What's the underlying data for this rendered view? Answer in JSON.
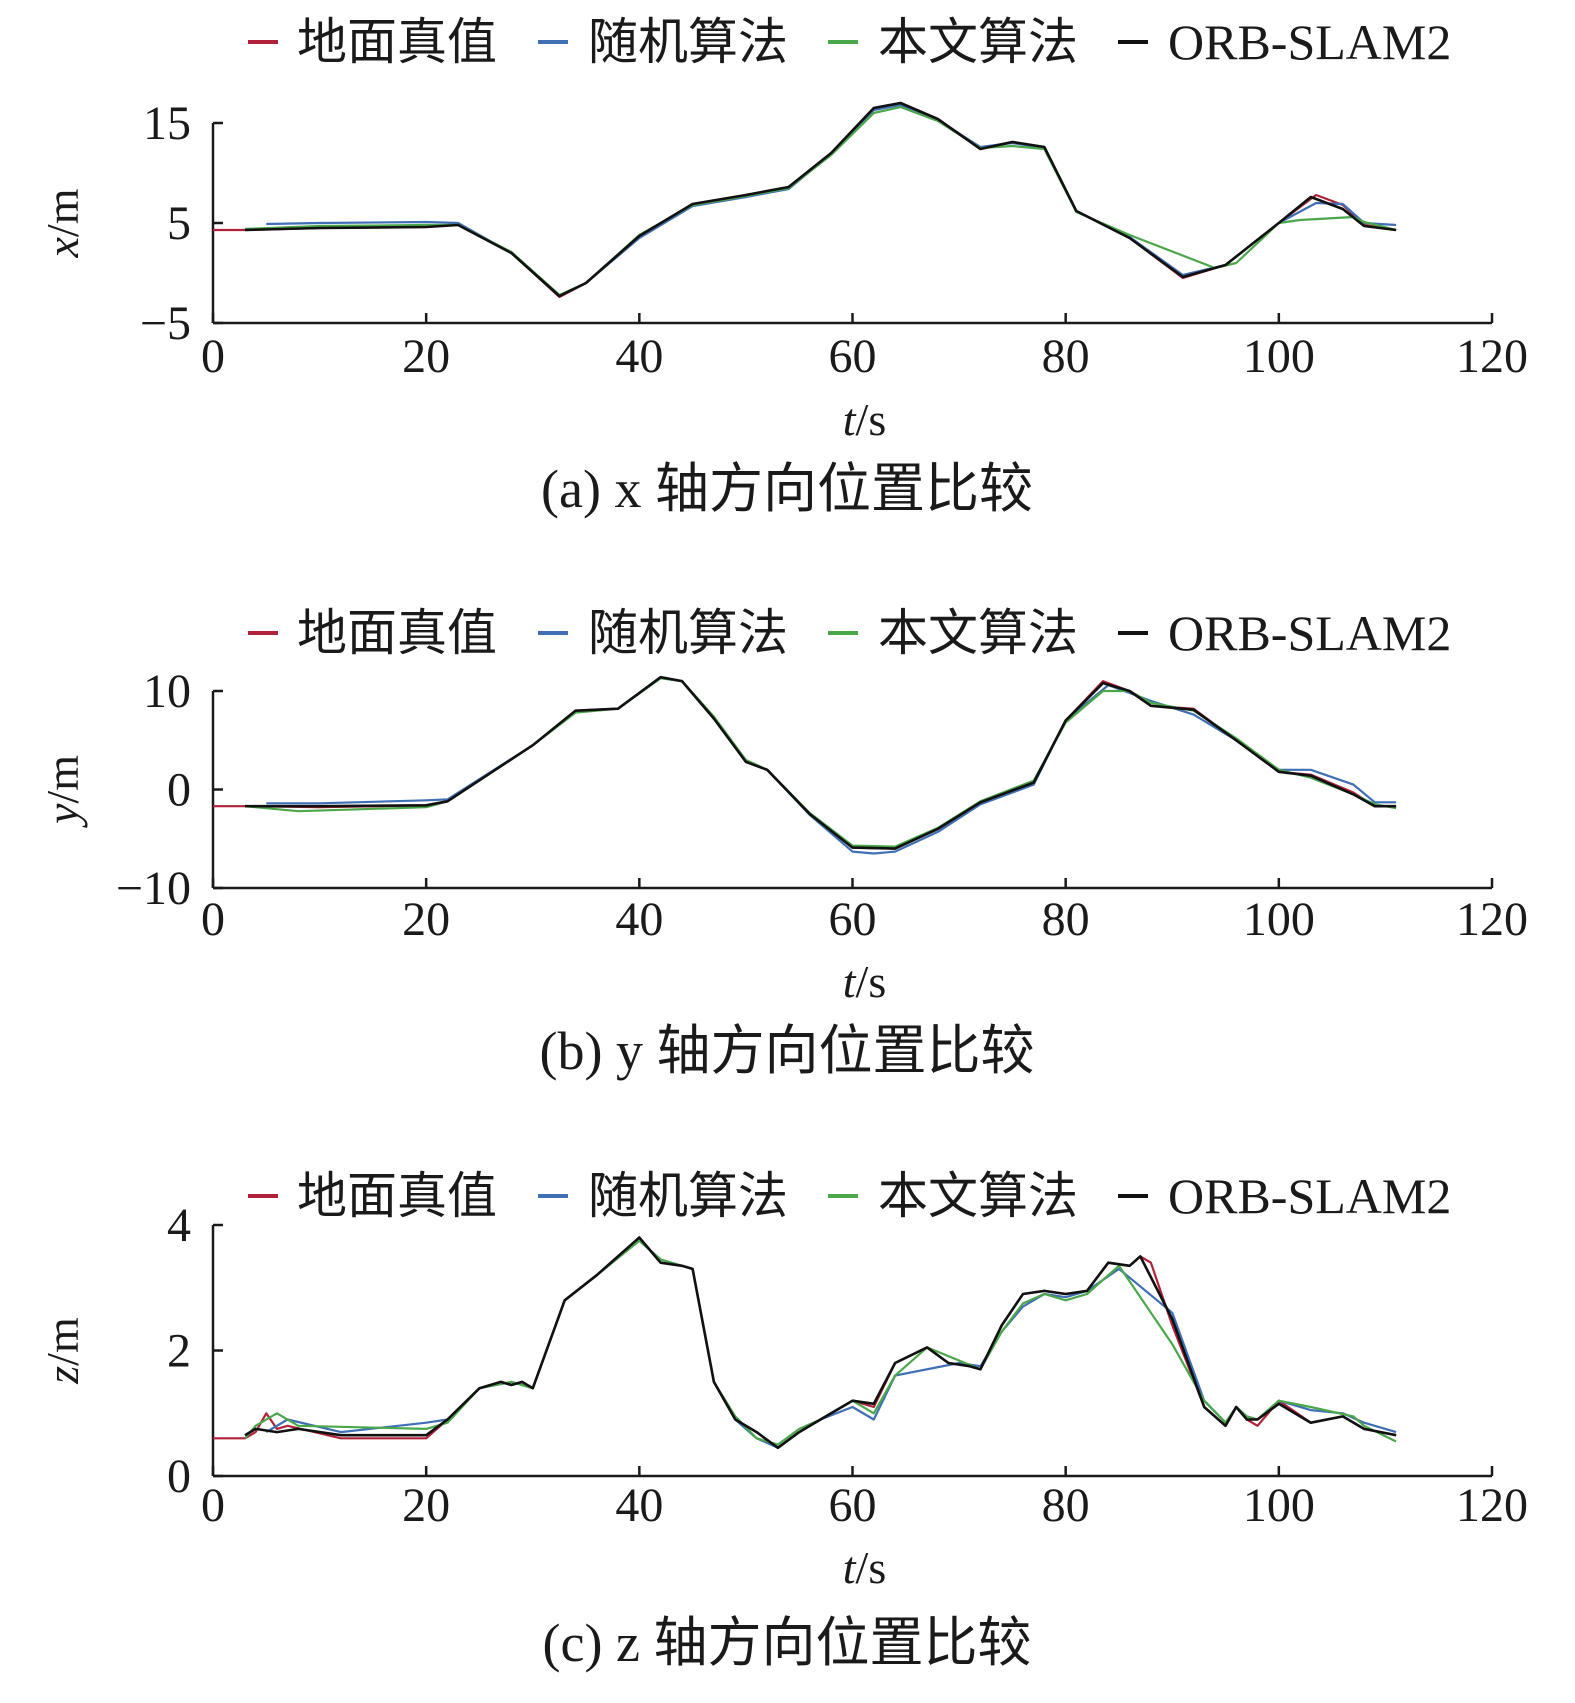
{
  "legend": {
    "items": [
      {
        "label": "地面真值",
        "color": "#b0223a"
      },
      {
        "label": "随机算法",
        "color": "#3f6fb5"
      },
      {
        "label": "本文算法",
        "color": "#4aa84a"
      },
      {
        "label": "ORB-SLAM2",
        "color": "#111111"
      }
    ]
  },
  "chart_data": [
    {
      "type": "line",
      "caption": "(a) x 轴方向位置比较",
      "xlabel": "t/s",
      "ylabel": "x/m",
      "xlim": [
        0,
        120
      ],
      "ylim": [
        -5,
        15
      ],
      "xticks": [
        0,
        20,
        40,
        60,
        80,
        100,
        120
      ],
      "yticks": [
        -5,
        5,
        15
      ],
      "ytick_labels": [
        "−5",
        "5",
        "15"
      ],
      "grid": false,
      "legend_position": "top",
      "series": [
        {
          "name": "地面真值",
          "color": "#b0223a",
          "x": [
            0,
            3,
            10,
            20,
            23,
            28,
            32.5,
            35,
            40,
            45,
            50,
            54,
            58,
            62,
            64.5,
            68,
            72,
            75,
            78,
            81,
            86,
            91,
            95,
            100,
            103.5,
            106,
            108,
            111
          ],
          "y": [
            4.3,
            4.3,
            4.5,
            4.6,
            4.9,
            2.0,
            -2.4,
            -1.0,
            3.7,
            6.9,
            7.8,
            8.6,
            12.0,
            16.5,
            17.0,
            15.4,
            12.5,
            13.1,
            12.6,
            6.2,
            3.5,
            -0.5,
            0.8,
            5.0,
            7.8,
            6.8,
            4.8,
            4.3
          ]
        },
        {
          "name": "随机算法",
          "color": "#3f6fb5",
          "x": [
            5,
            10,
            20,
            23,
            28,
            32.5,
            35,
            40,
            45,
            50,
            54,
            58,
            62,
            64.5,
            68,
            72,
            75,
            78,
            81,
            86,
            91,
            95,
            100,
            103.5,
            106,
            108,
            111
          ],
          "y": [
            4.9,
            5.0,
            5.1,
            5.0,
            2.0,
            -2.3,
            -1.0,
            3.5,
            6.7,
            7.6,
            8.4,
            11.9,
            16.3,
            16.8,
            15.3,
            12.6,
            13.0,
            12.5,
            6.2,
            3.6,
            -0.2,
            0.8,
            5.0,
            7.0,
            6.9,
            5.0,
            4.8
          ]
        },
        {
          "name": "本文算法",
          "color": "#4aa84a",
          "x": [
            3,
            10,
            20,
            23,
            28,
            32.5,
            35,
            40,
            45,
            50,
            54,
            58,
            62,
            64.5,
            68,
            72,
            75,
            78,
            81,
            86,
            94,
            96,
            100,
            102,
            107,
            108,
            111
          ],
          "y": [
            4.4,
            4.7,
            4.8,
            4.8,
            2.1,
            -2.2,
            -1.0,
            3.8,
            6.8,
            7.7,
            8.5,
            11.8,
            16.0,
            16.6,
            15.2,
            12.5,
            12.7,
            12.4,
            6.1,
            3.8,
            0.5,
            1.0,
            5.0,
            5.3,
            5.6,
            5.1,
            4.3
          ]
        },
        {
          "name": "ORB-SLAM2",
          "color": "#111111",
          "x": [
            3,
            10,
            20,
            23,
            28,
            32.5,
            35,
            40,
            45,
            50,
            54,
            58,
            62,
            64.5,
            68,
            72,
            75,
            78,
            81,
            86,
            91,
            95,
            100,
            103,
            106,
            108,
            111
          ],
          "y": [
            4.3,
            4.5,
            4.6,
            4.8,
            2.0,
            -2.3,
            -1.0,
            3.7,
            6.9,
            7.8,
            8.6,
            12.0,
            16.5,
            17.0,
            15.4,
            12.4,
            13.1,
            12.6,
            6.2,
            3.5,
            -0.4,
            0.8,
            5.0,
            7.6,
            6.4,
            4.7,
            4.3
          ]
        }
      ]
    },
    {
      "type": "line",
      "caption": "(b) y 轴方向位置比较",
      "xlabel": "t/s",
      "ylabel": "y/m",
      "xlim": [
        0,
        120
      ],
      "ylim": [
        -10,
        10
      ],
      "xticks": [
        0,
        20,
        40,
        60,
        80,
        100,
        120
      ],
      "yticks": [
        -10,
        0,
        10
      ],
      "ytick_labels": [
        "−10",
        "0",
        "10"
      ],
      "grid": false,
      "legend_position": "top",
      "series": [
        {
          "name": "地面真值",
          "color": "#b0223a",
          "x": [
            0,
            3,
            10,
            20,
            22,
            30,
            34,
            38,
            42,
            44,
            47,
            50,
            52,
            56,
            60,
            64,
            68,
            72,
            77,
            80,
            83.5,
            86,
            88,
            92,
            96,
            100,
            103,
            107,
            109,
            111
          ],
          "y": [
            -1.7,
            -1.7,
            -1.8,
            -1.6,
            -1.2,
            4.5,
            8.0,
            8.2,
            11.4,
            11.0,
            7.2,
            2.8,
            2.0,
            -2.5,
            -5.9,
            -6.0,
            -4.0,
            -1.3,
            0.7,
            7.0,
            11.0,
            10.0,
            8.5,
            8.2,
            5.0,
            1.8,
            1.5,
            -0.3,
            -1.7,
            -1.7
          ]
        },
        {
          "name": "随机算法",
          "color": "#3f6fb5",
          "x": [
            5,
            10,
            20,
            22,
            30,
            34,
            38,
            42,
            44,
            47,
            50,
            52,
            56,
            60,
            62,
            64,
            68,
            72,
            77,
            80,
            84,
            88,
            92,
            96,
            100,
            103,
            107,
            109,
            111
          ],
          "y": [
            -1.4,
            -1.4,
            -1.1,
            -1.0,
            4.5,
            8.0,
            8.2,
            11.3,
            11.0,
            7.2,
            2.8,
            2.0,
            -2.6,
            -6.3,
            -6.5,
            -6.3,
            -4.3,
            -1.5,
            0.5,
            7.0,
            10.6,
            9.0,
            7.6,
            5.0,
            2.0,
            2.0,
            0.5,
            -1.3,
            -1.3
          ]
        },
        {
          "name": "本文算法",
          "color": "#4aa84a",
          "x": [
            3,
            8,
            20,
            22,
            30,
            34,
            38,
            42,
            44,
            47,
            50,
            52,
            56,
            60,
            64,
            68,
            72,
            77,
            80,
            83.5,
            86,
            88,
            92,
            96,
            100,
            103,
            107,
            109,
            111
          ],
          "y": [
            -1.7,
            -2.2,
            -1.8,
            -1.2,
            4.5,
            7.8,
            8.2,
            11.3,
            11.0,
            7.4,
            3.0,
            2.0,
            -2.4,
            -5.7,
            -5.8,
            -3.9,
            -1.2,
            0.9,
            6.8,
            10.0,
            10.0,
            8.8,
            8.0,
            5.2,
            2.0,
            1.2,
            -0.5,
            -1.5,
            -1.9
          ]
        },
        {
          "name": "ORB-SLAM2",
          "color": "#111111",
          "x": [
            3,
            10,
            20,
            22,
            30,
            34,
            38,
            42,
            44,
            47,
            50,
            52,
            56,
            60,
            64,
            68,
            72,
            77,
            80,
            83.5,
            86,
            88,
            92,
            96,
            100,
            103,
            107,
            109,
            111
          ],
          "y": [
            -1.7,
            -1.7,
            -1.6,
            -1.2,
            4.5,
            8.0,
            8.2,
            11.4,
            11.0,
            7.2,
            2.8,
            2.0,
            -2.5,
            -5.9,
            -6.0,
            -4.0,
            -1.3,
            0.7,
            7.0,
            10.8,
            10.0,
            8.5,
            8.1,
            5.0,
            1.8,
            1.4,
            -0.5,
            -1.7,
            -1.7
          ]
        }
      ]
    },
    {
      "type": "line",
      "caption": "(c) z 轴方向位置比较",
      "xlabel": "t/s",
      "ylabel": "z/m",
      "xlim": [
        0,
        120
      ],
      "ylim": [
        0,
        4
      ],
      "xticks": [
        0,
        20,
        40,
        60,
        80,
        100,
        120
      ],
      "yticks": [
        0,
        2,
        4
      ],
      "ytick_labels": [
        "0",
        "2",
        "4"
      ],
      "grid": false,
      "legend_position": "top",
      "series": [
        {
          "name": "地面真值",
          "color": "#b0223a",
          "x": [
            0,
            3,
            4,
            5,
            6,
            7,
            12,
            20,
            22,
            25,
            27,
            28,
            29,
            30,
            33,
            36,
            38,
            40,
            42,
            44,
            45,
            47,
            49,
            51,
            53,
            55,
            57,
            60,
            62,
            64,
            67,
            69,
            71,
            72,
            74,
            76,
            78,
            80,
            82,
            84,
            86,
            87,
            88,
            90,
            93,
            95,
            96,
            97,
            98,
            100,
            103,
            106,
            108,
            111
          ],
          "y": [
            0.6,
            0.6,
            0.7,
            1.0,
            0.75,
            0.8,
            0.6,
            0.6,
            0.9,
            1.4,
            1.5,
            1.45,
            1.5,
            1.4,
            2.8,
            3.2,
            3.5,
            3.8,
            3.4,
            3.35,
            3.3,
            1.5,
            0.9,
            0.7,
            0.45,
            0.7,
            0.9,
            1.2,
            1.1,
            1.8,
            2.05,
            1.8,
            1.75,
            1.7,
            2.4,
            2.9,
            2.95,
            2.9,
            2.95,
            3.4,
            3.35,
            3.5,
            3.4,
            2.4,
            1.1,
            0.8,
            1.1,
            0.9,
            0.8,
            1.2,
            0.85,
            0.95,
            0.75,
            0.65
          ]
        },
        {
          "name": "随机算法",
          "color": "#3f6fb5",
          "x": [
            5,
            7,
            12,
            20,
            22,
            25,
            28,
            30,
            33,
            36,
            40,
            42,
            45,
            47,
            49,
            51,
            53,
            55,
            57,
            60,
            62,
            64,
            70,
            72,
            74,
            76,
            78,
            80,
            82,
            85,
            90,
            93,
            95,
            96,
            97,
            98,
            100,
            103,
            106,
            108,
            111
          ],
          "y": [
            0.7,
            0.9,
            0.7,
            0.85,
            0.9,
            1.4,
            1.5,
            1.4,
            2.8,
            3.2,
            3.75,
            3.45,
            3.3,
            1.5,
            0.9,
            0.6,
            0.45,
            0.7,
            0.9,
            1.1,
            0.9,
            1.6,
            1.8,
            1.75,
            2.3,
            2.7,
            2.9,
            2.85,
            2.95,
            3.3,
            2.6,
            1.2,
            0.85,
            1.1,
            0.95,
            0.9,
            1.2,
            1.05,
            1.0,
            0.85,
            0.7
          ]
        },
        {
          "name": "本文算法",
          "color": "#4aa84a",
          "x": [
            3,
            4,
            6,
            8,
            20,
            22,
            25,
            28,
            30,
            33,
            36,
            40,
            42,
            45,
            47,
            49,
            51,
            53,
            55,
            57,
            60,
            62,
            64,
            67,
            72,
            74,
            76,
            78,
            80,
            82,
            85,
            90,
            93,
            95,
            96,
            97,
            98,
            100,
            103,
            107,
            108,
            111
          ],
          "y": [
            0.6,
            0.8,
            1.0,
            0.8,
            0.75,
            0.85,
            1.4,
            1.5,
            1.4,
            2.8,
            3.2,
            3.75,
            3.45,
            3.3,
            1.5,
            0.95,
            0.6,
            0.5,
            0.75,
            0.9,
            1.2,
            1.0,
            1.6,
            2.05,
            1.7,
            2.3,
            2.75,
            2.9,
            2.8,
            2.9,
            3.35,
            2.1,
            1.2,
            0.85,
            1.1,
            0.95,
            0.9,
            1.2,
            1.1,
            0.95,
            0.8,
            0.55
          ]
        },
        {
          "name": "ORB-SLAM2",
          "color": "#111111",
          "x": [
            3,
            4,
            6,
            8,
            12,
            20,
            22,
            25,
            27,
            28,
            29,
            30,
            33,
            36,
            38,
            40,
            42,
            44,
            45,
            47,
            49,
            51,
            53,
            55,
            57,
            60,
            62,
            64,
            67,
            69,
            71,
            72,
            74,
            76,
            78,
            80,
            82,
            84,
            86,
            87,
            90,
            93,
            95,
            96,
            97,
            98,
            100,
            103,
            106,
            108,
            111
          ],
          "y": [
            0.65,
            0.75,
            0.7,
            0.75,
            0.65,
            0.65,
            0.9,
            1.4,
            1.5,
            1.45,
            1.5,
            1.4,
            2.8,
            3.2,
            3.5,
            3.8,
            3.4,
            3.35,
            3.3,
            1.5,
            0.9,
            0.7,
            0.45,
            0.7,
            0.9,
            1.2,
            1.15,
            1.8,
            2.05,
            1.8,
            1.75,
            1.7,
            2.4,
            2.9,
            2.95,
            2.9,
            2.95,
            3.4,
            3.35,
            3.5,
            2.5,
            1.1,
            0.8,
            1.1,
            0.9,
            0.9,
            1.15,
            0.85,
            0.95,
            0.75,
            0.65
          ]
        }
      ]
    }
  ]
}
